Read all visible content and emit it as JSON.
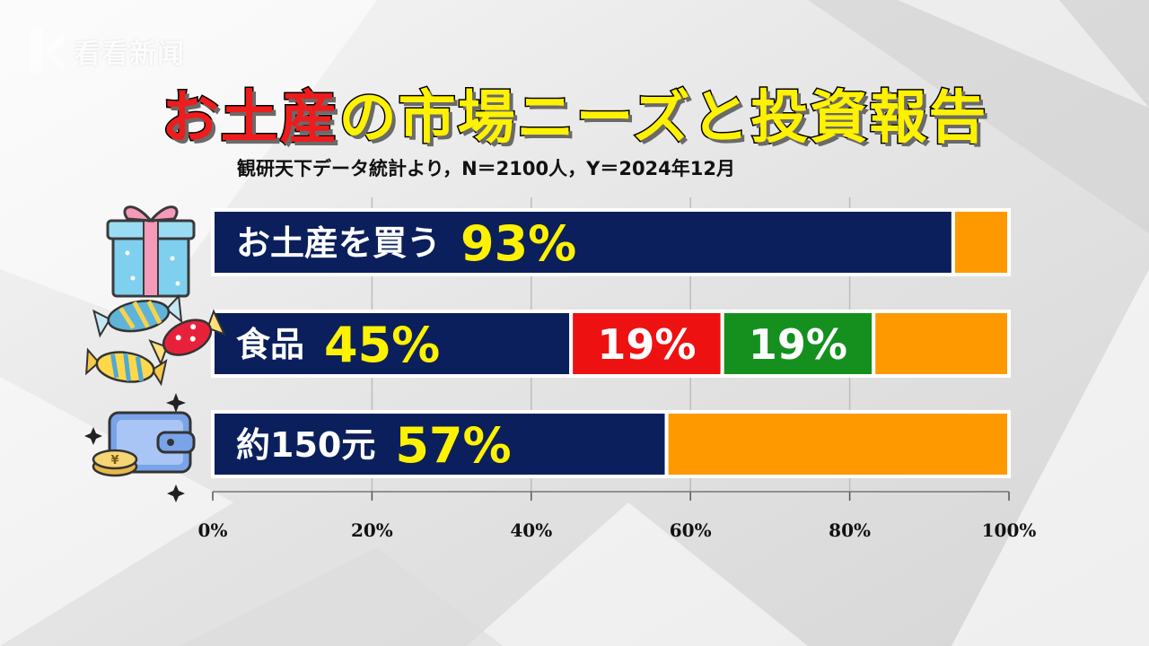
{
  "logo": {
    "text": "看看新闻"
  },
  "title": {
    "part1": "お土産",
    "part2": "の市場ニーズと投資報告"
  },
  "subtitle": "観研天下データ統計より，N＝2100人，Y＝2024年12月",
  "colors": {
    "navy": "#0b1f5c",
    "red": "#ee1111",
    "green": "#15901f",
    "orange": "#ff9900",
    "yellow_text": "#fff200"
  },
  "icons": [
    "gift-box-icon",
    "candy-icon",
    "wallet-coin-icon"
  ],
  "chart_data": {
    "type": "bar",
    "orientation": "horizontal",
    "stacked": true,
    "xlim": [
      0,
      100
    ],
    "x_ticks": [
      "0%",
      "20%",
      "40%",
      "60%",
      "80%",
      "100%"
    ],
    "grid": true,
    "rows": [
      {
        "label": "お土産を買う",
        "segments": [
          {
            "value": 93,
            "label": "93%",
            "color": "navy"
          },
          {
            "value": 7,
            "label": "",
            "color": "orange"
          }
        ]
      },
      {
        "label": "食品",
        "segments": [
          {
            "value": 45,
            "label": "45%",
            "color": "navy"
          },
          {
            "value": 19,
            "label": "19%",
            "color": "red"
          },
          {
            "value": 19,
            "label": "19%",
            "color": "green"
          },
          {
            "value": 17,
            "label": "",
            "color": "orange"
          }
        ]
      },
      {
        "label": "約150元",
        "segments": [
          {
            "value": 57,
            "label": "57%",
            "color": "navy"
          },
          {
            "value": 43,
            "label": "",
            "color": "orange"
          }
        ]
      }
    ]
  }
}
